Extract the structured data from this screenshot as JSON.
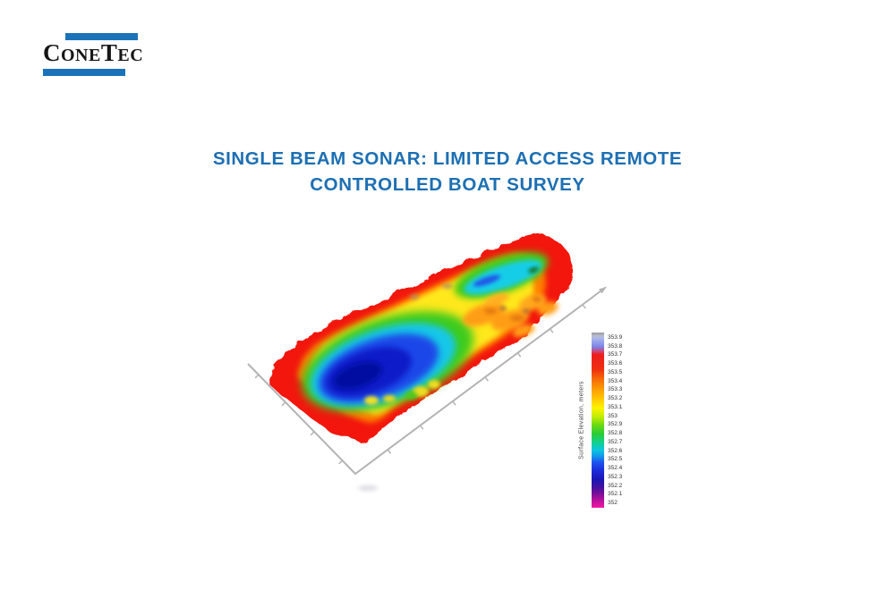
{
  "slide": {
    "background": "#ffffff"
  },
  "logo": {
    "full_name": "ConeTec",
    "c1": "C",
    "one": "ONE",
    "t2": "T",
    "ec": "EC",
    "bar_color": "#1c72b9",
    "text_color": "#161616"
  },
  "title": {
    "line1": "SINGLE BEAM SONAR: LIMITED ACCESS REMOTE",
    "line2": "CONTROLLED BOAT SURVEY",
    "color": "#1d6fb3"
  },
  "chart_data": {
    "type": "surface",
    "subtype": "3d-bathymetric-elevation-surface",
    "colorbar": {
      "label": "Surface Elevation,  meters",
      "tick_labels": [
        "353.9",
        "353.8",
        "353.7",
        "353.6",
        "353.5",
        "353.4",
        "353.3",
        "353.2",
        "353.1",
        "353",
        "352.9",
        "352.8",
        "352.7",
        "352.6",
        "352.5",
        "352.4",
        "352.3",
        "352.2",
        "352.1",
        "352"
      ],
      "min_value": 352,
      "max_value": 353.9,
      "tick_interval": 0.1,
      "orientation": "vertical",
      "colors_top_to_bottom": [
        "gray",
        "periwinkle-blue",
        "red",
        "orange",
        "yellow",
        "green",
        "cyan",
        "blue",
        "navy",
        "purple",
        "magenta"
      ]
    },
    "axes": {
      "style": "3d-corner-axes",
      "tick_marks_visible": true,
      "tick_labels_visible": false,
      "arrow_on_right_axis": true
    },
    "surface_regions": [
      {
        "region": "survey perimeter berm",
        "color": "red",
        "approx_elevation_m": "353.5-353.7"
      },
      {
        "region": "shoreline transition band",
        "color": "orange to yellow",
        "approx_elevation_m": "353.0-353.4"
      },
      {
        "region": "main deep basin (southwest half)",
        "color": "blue to dark blue",
        "approx_elevation_m": "352.2-352.6"
      },
      {
        "region": "secondary shallow basin (northeast end)",
        "color": "cyan",
        "approx_elevation_m": "352.5-352.7"
      },
      {
        "region": "hummocky shoal between basins",
        "color": "mottled orange-yellow",
        "approx_elevation_m": "353.1-353.4"
      }
    ]
  }
}
